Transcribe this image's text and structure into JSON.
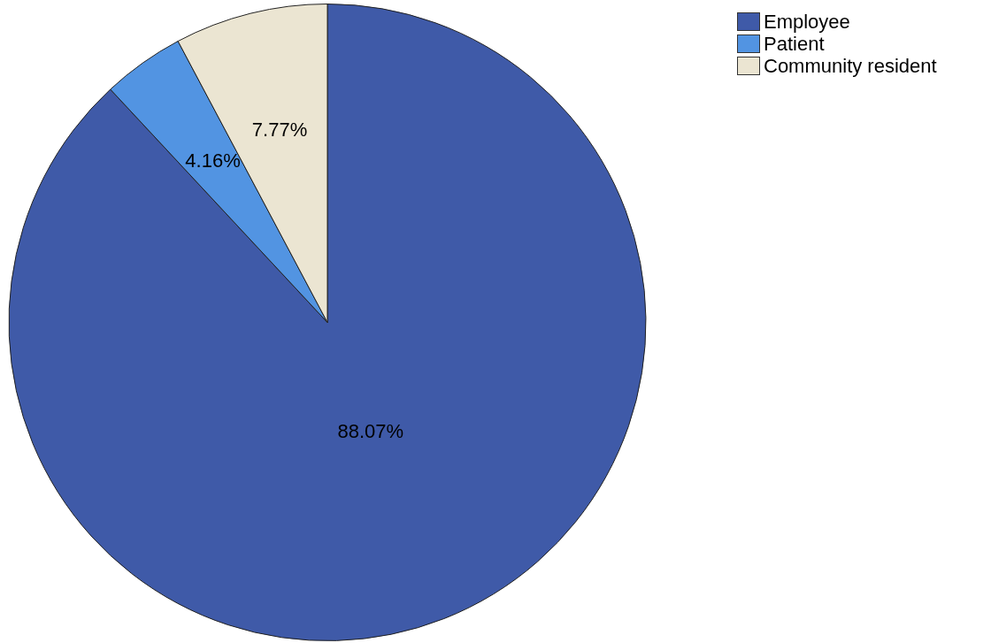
{
  "chart_data": {
    "type": "pie",
    "categories": [
      "Employee",
      "Patient",
      "Community resident"
    ],
    "values": [
      88.07,
      4.16,
      7.77
    ],
    "colors": [
      "#3f5aa8",
      "#5294e2",
      "#ebe5d2"
    ],
    "value_labels": [
      "88.07%",
      "4.16%",
      "7.77%"
    ],
    "legend": "top right"
  }
}
